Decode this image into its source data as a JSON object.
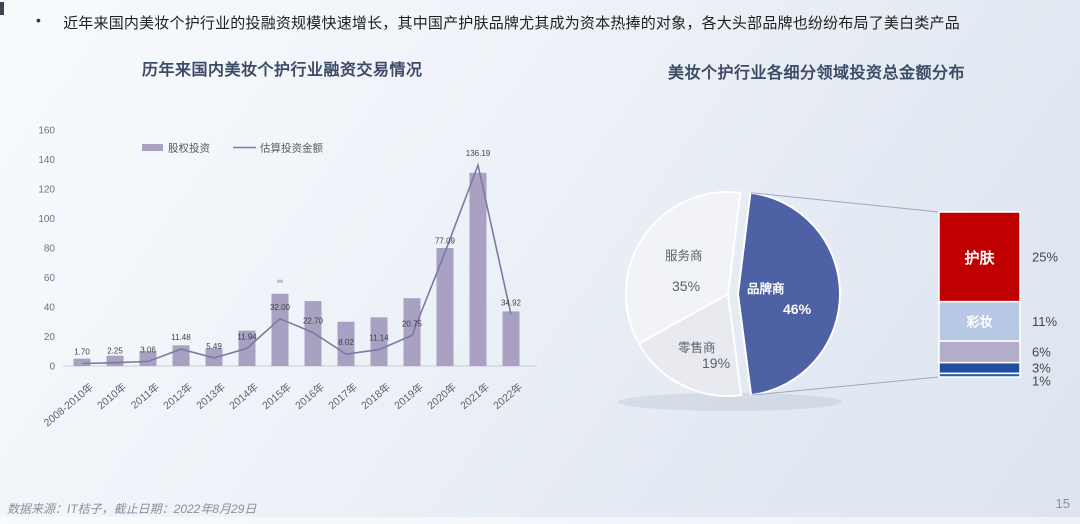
{
  "page": {
    "bullet_glyph": "•",
    "bullet_text": "近年来国内美妆个护行业的投融资规模快速增长，其中国产护肤品牌尤其成为资本热捧的对象，各大头部品牌也纷纷布局了美白类产品",
    "footer_source": "数据来源：IT桔子，截止日期：2022年8月29日",
    "page_number": "15"
  },
  "chart_data": [
    {
      "type": "bar+line",
      "title": "历年来国内美妆个护行业融资交易情况",
      "categories": [
        "2008-2010年",
        "2010年",
        "2011年",
        "2012年",
        "2013年",
        "2014年",
        "2015年",
        "2016年",
        "2017年",
        "2018年",
        "2019年",
        "2020年",
        "2021年",
        "2022年"
      ],
      "series": [
        {
          "name": "股权投资",
          "type": "bar",
          "color": "#a8a1c2",
          "values": [
            5,
            7,
            10,
            14,
            12,
            24,
            49,
            44,
            30,
            33,
            46,
            80,
            131,
            37
          ]
        },
        {
          "name": "估算投资金额",
          "type": "line",
          "color": "#7d78a5",
          "values": [
            1.7,
            2.25,
            3.06,
            11.48,
            5.49,
            11.94,
            32.0,
            22.7,
            8.02,
            11.14,
            20.75,
            77.09,
            136.19,
            34.92
          ],
          "labels": [
            "1.70",
            "2.25",
            "3.06",
            "11.48",
            "5.49",
            "11.94",
            "32.00",
            "22.70",
            "8.02",
            "11.14",
            "20.75",
            "77.09",
            "136.19",
            "34.92"
          ]
        }
      ],
      "xlabel": "",
      "ylabel": "",
      "ylim": [
        0,
        160
      ],
      "ytick_step": 20,
      "grid": false,
      "legend_position": "top"
    },
    {
      "type": "pie",
      "title": "美妆个护行业各细分领域投资总金额分布",
      "slices": [
        {
          "label": "品牌商",
          "pct": "46%",
          "value": 46,
          "color": "#4d61a4",
          "exploded": true
        },
        {
          "label": "零售商",
          "pct": "19%",
          "value": 19,
          "color": "#e9eaef",
          "exploded": false
        },
        {
          "label": "服务商",
          "pct": "35%",
          "value": 35,
          "color": "#f2f3f7",
          "exploded": false
        }
      ],
      "breakout_bar": {
        "of_slice": "品牌商",
        "segments": [
          {
            "label": "护肤",
            "pct": "25%",
            "value": 25,
            "color": "#c00000"
          },
          {
            "label": "彩妆",
            "pct": "11%",
            "value": 11,
            "color": "#b7c8e4"
          },
          {
            "label": "",
            "pct": "6%",
            "value": 6,
            "color": "#b2adc8"
          },
          {
            "label": "",
            "pct": "3%",
            "value": 3,
            "color": "#1e4fa1"
          },
          {
            "label": "",
            "pct": "1%",
            "value": 1,
            "color": "#2d5aa9"
          }
        ]
      },
      "legend_position": "none",
      "grid": false
    }
  ]
}
